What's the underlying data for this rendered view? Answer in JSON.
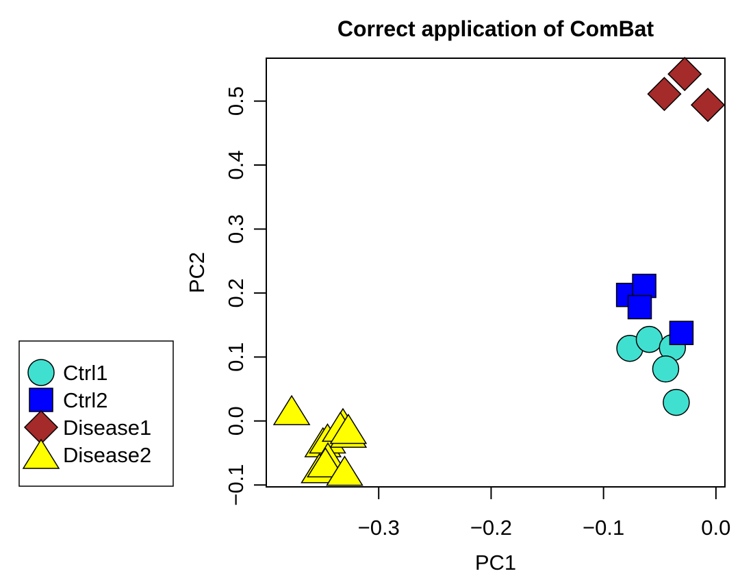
{
  "chart_data": {
    "type": "scatter",
    "title": "Correct application of ComBat",
    "xlabel": "PC1",
    "ylabel": "PC2",
    "xlim": [
      -0.4,
      0.008
    ],
    "ylim": [
      -0.103,
      0.567
    ],
    "xticks": [
      -0.3,
      -0.2,
      -0.1,
      0.0
    ],
    "xtick_labels": [
      "−0.3",
      "−0.2",
      "−0.1",
      "0.0"
    ],
    "yticks": [
      -0.1,
      0.0,
      0.1,
      0.2,
      0.3,
      0.4,
      0.5
    ],
    "ytick_labels": [
      "−0.1",
      "0.0",
      "0.1",
      "0.2",
      "0.3",
      "0.4",
      "0.5"
    ],
    "legend_position": "left-outside",
    "series": [
      {
        "name": "Ctrl1",
        "shape": "circle",
        "color": "#40E0D0",
        "points": [
          [
            -0.0766,
            0.1135
          ],
          [
            -0.0593,
            0.1275
          ],
          [
            -0.0387,
            0.1145
          ],
          [
            -0.0447,
            0.0813
          ],
          [
            -0.0353,
            0.0291
          ]
        ]
      },
      {
        "name": "Ctrl2",
        "shape": "square",
        "color": "#0000FF",
        "points": [
          [
            -0.0781,
            0.197
          ],
          [
            -0.0638,
            0.2111
          ],
          [
            -0.0678,
            0.1779
          ],
          [
            -0.0307,
            0.1376
          ]
        ]
      },
      {
        "name": "Disease1",
        "shape": "diamond",
        "color": "#A52A2A",
        "points": [
          [
            -0.0459,
            0.5111
          ],
          [
            -0.0278,
            0.5423
          ],
          [
            -0.0072,
            0.494
          ]
        ]
      },
      {
        "name": "Disease2",
        "shape": "triangle",
        "color": "#FFFF00",
        "points": [
          [
            -0.3774,
            0.0157
          ],
          [
            -0.3496,
            -0.0345
          ],
          [
            -0.3455,
            -0.0286
          ],
          [
            -0.327,
            -0.0197
          ],
          [
            -0.3318,
            -0.0045
          ],
          [
            -0.3452,
            -0.0583
          ],
          [
            -0.3528,
            -0.0751
          ],
          [
            -0.3474,
            -0.066
          ],
          [
            -0.3303,
            -0.0791
          ],
          [
            -0.3341,
            -0.0103
          ],
          [
            -0.327,
            -0.0136
          ]
        ]
      }
    ]
  }
}
